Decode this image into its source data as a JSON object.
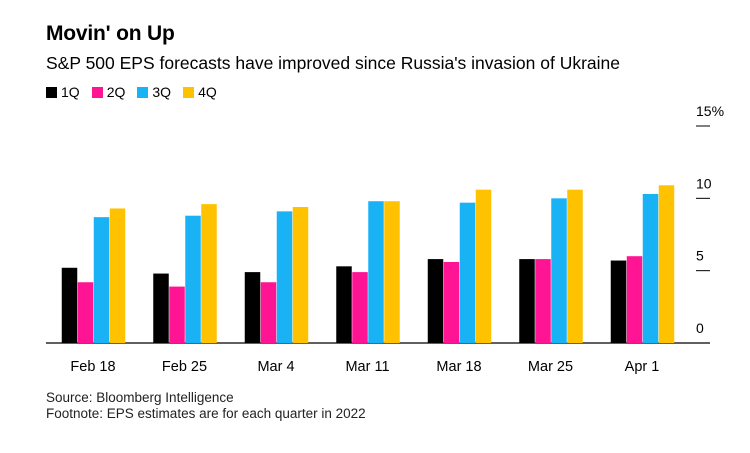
{
  "title": "Movin' on Up",
  "subtitle": "S&P 500 EPS forecasts have improved since Russia's invasion of Ukraine",
  "source": "Source: Bloomberg Intelligence",
  "footnote": "Footnote: EPS estimates are for each quarter in 2022",
  "colors": {
    "1Q": "#000000",
    "2Q": "#ff1493",
    "3Q": "#19b3f5",
    "4Q": "#ffc200"
  },
  "chart_data": {
    "type": "bar",
    "title": "Movin' on Up",
    "xlabel": "",
    "ylabel": "",
    "ylim": [
      0,
      15
    ],
    "y_ticks": [
      "0",
      "5",
      "10",
      "15%"
    ],
    "y_axis_side": "right",
    "categories": [
      "Feb 18",
      "Feb 25",
      "Mar 4",
      "Mar 11",
      "Mar 18",
      "Mar 25",
      "Apr 1"
    ],
    "series": [
      {
        "name": "1Q",
        "values": [
          5.2,
          4.8,
          4.9,
          5.3,
          5.8,
          5.8,
          5.7
        ]
      },
      {
        "name": "2Q",
        "values": [
          4.2,
          3.9,
          4.2,
          4.9,
          5.6,
          5.8,
          6.0
        ]
      },
      {
        "name": "3Q",
        "values": [
          8.7,
          8.8,
          9.1,
          9.8,
          9.7,
          10.0,
          10.3
        ]
      },
      {
        "name": "4Q",
        "values": [
          9.3,
          9.6,
          9.4,
          9.8,
          10.6,
          10.6,
          10.9
        ]
      }
    ],
    "legend_position": "top-left"
  }
}
